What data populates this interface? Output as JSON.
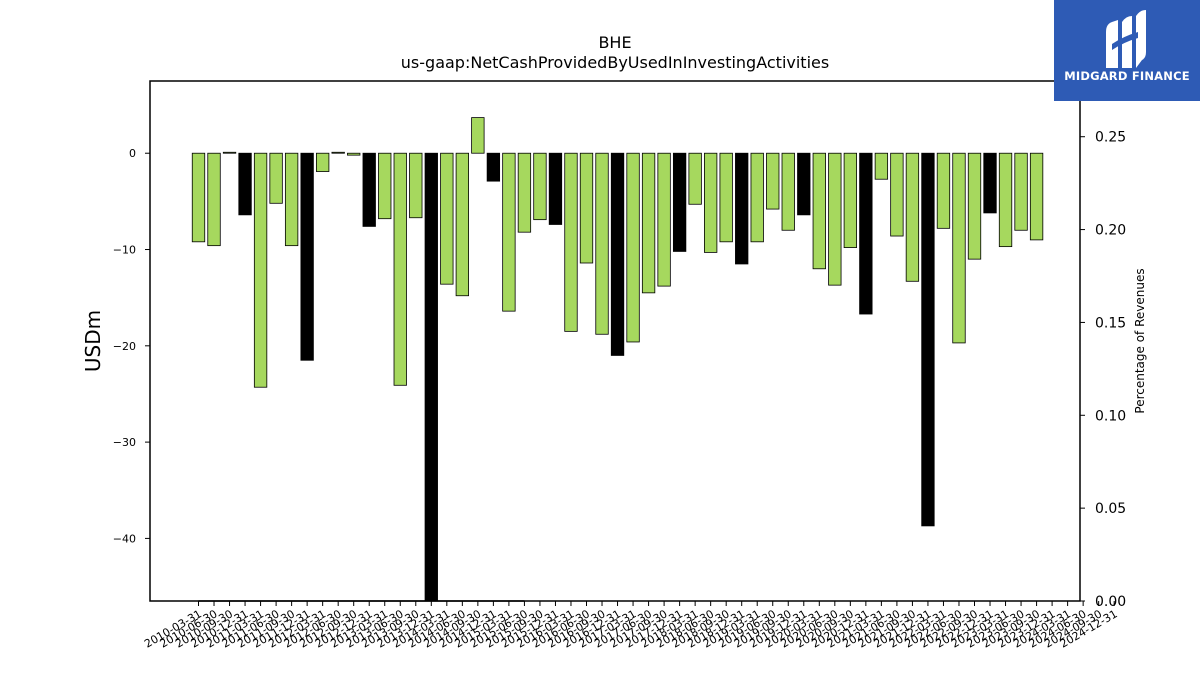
{
  "brand": {
    "name": "MIDGARD FINANCE",
    "logo_icon": "midgard-m-logo-icon",
    "color": "#2e5bb5"
  },
  "chart_data": {
    "type": "bar",
    "title": "BHE",
    "subtitle": "us-gaap:NetCashProvidedByUsedInInvestingActivities",
    "ylabel": "USDm",
    "y2label": "Percentage of Revenues",
    "ylim": [
      -46.5,
      7.5
    ],
    "y2lim": [
      0.0,
      0.28
    ],
    "yticks": [
      0,
      -10,
      -20,
      -30,
      -40
    ],
    "y2ticks": [
      "0.25",
      "0.20",
      "0.15",
      "0.10",
      "0.05",
      "0.00"
    ],
    "colors": {
      "quarterly": "#a6d85e",
      "annual": "#000000",
      "edge": "#000000"
    },
    "categories": [
      "2010-03-31",
      "2010-06-30",
      "2010-09-30",
      "2010-12-31",
      "2011-03-31",
      "2011-06-30",
      "2011-09-30",
      "2011-12-31",
      "2012-03-31",
      "2012-06-30",
      "2012-09-30",
      "2012-12-31",
      "2013-03-31",
      "2013-06-30",
      "2013-09-30",
      "2013-12-31",
      "2014-03-31",
      "2014-06-30",
      "2014-09-30",
      "2014-12-31",
      "2015-03-31",
      "2015-06-30",
      "2015-09-30",
      "2015-12-31",
      "2016-03-31",
      "2016-06-30",
      "2016-09-30",
      "2016-12-31",
      "2017-03-31",
      "2017-06-30",
      "2017-09-30",
      "2017-12-31",
      "2018-03-31",
      "2018-06-30",
      "2018-09-30",
      "2018-12-31",
      "2019-03-31",
      "2019-06-30",
      "2019-09-30",
      "2019-12-31",
      "2020-03-31",
      "2020-06-30",
      "2020-09-30",
      "2020-12-31",
      "2021-03-31",
      "2021-06-30",
      "2021-09-30",
      "2021-12-31",
      "2022-03-31",
      "2022-06-30",
      "2022-09-30",
      "2022-12-31",
      "2023-03-31",
      "2023-06-30",
      "2023-09-30",
      "2023-12-31",
      "2024-03-31",
      "2024-06-30",
      "2024-09-30",
      "2024-12-31"
    ],
    "series": [
      {
        "values": [
          -9.2,
          -9.6,
          0.1,
          -6.4,
          -24.3,
          -5.2,
          -9.6,
          -21.5,
          -1.9,
          0.1,
          -0.2,
          -7.6,
          -6.8,
          -24.1,
          -6.7,
          -46.5,
          -13.6,
          -14.8,
          3.7,
          -2.9,
          -16.4,
          -8.2,
          -6.9,
          -7.4,
          -18.5,
          -11.4,
          -18.8,
          -21.0,
          -19.6,
          -14.5,
          -13.8,
          -10.2,
          -5.3,
          -10.3,
          -9.2,
          -11.5,
          -9.2,
          -5.8,
          -8.0,
          -6.4,
          -12.0,
          -13.7,
          -9.8,
          -16.7,
          -2.7,
          -8.6,
          -13.3,
          -38.7,
          -7.8,
          -19.7,
          -11.0,
          -6.2,
          -9.7,
          -8.0,
          -9.0,
          null,
          null,
          null,
          null,
          null
        ],
        "annual": [
          false,
          false,
          false,
          true,
          false,
          false,
          false,
          true,
          false,
          false,
          false,
          true,
          false,
          false,
          false,
          true,
          false,
          false,
          false,
          true,
          false,
          false,
          false,
          true,
          false,
          false,
          false,
          true,
          false,
          false,
          false,
          true,
          false,
          false,
          false,
          true,
          false,
          false,
          false,
          true,
          false,
          false,
          false,
          true,
          false,
          false,
          false,
          true,
          false,
          false,
          false,
          true,
          false,
          false,
          false,
          true,
          false,
          false,
          false,
          true
        ]
      }
    ],
    "pct_of_revenues": [
      0.0,
      0.0,
      0.0,
      0.0,
      0.0,
      0.0,
      0.0,
      0.0,
      0.0,
      0.0,
      0.0,
      0.0,
      0.0,
      0.0,
      0.0,
      0.0,
      0.0,
      0.0,
      0.0,
      0.0,
      0.0,
      0.0
    ],
    "legend": "none",
    "grid": false
  }
}
